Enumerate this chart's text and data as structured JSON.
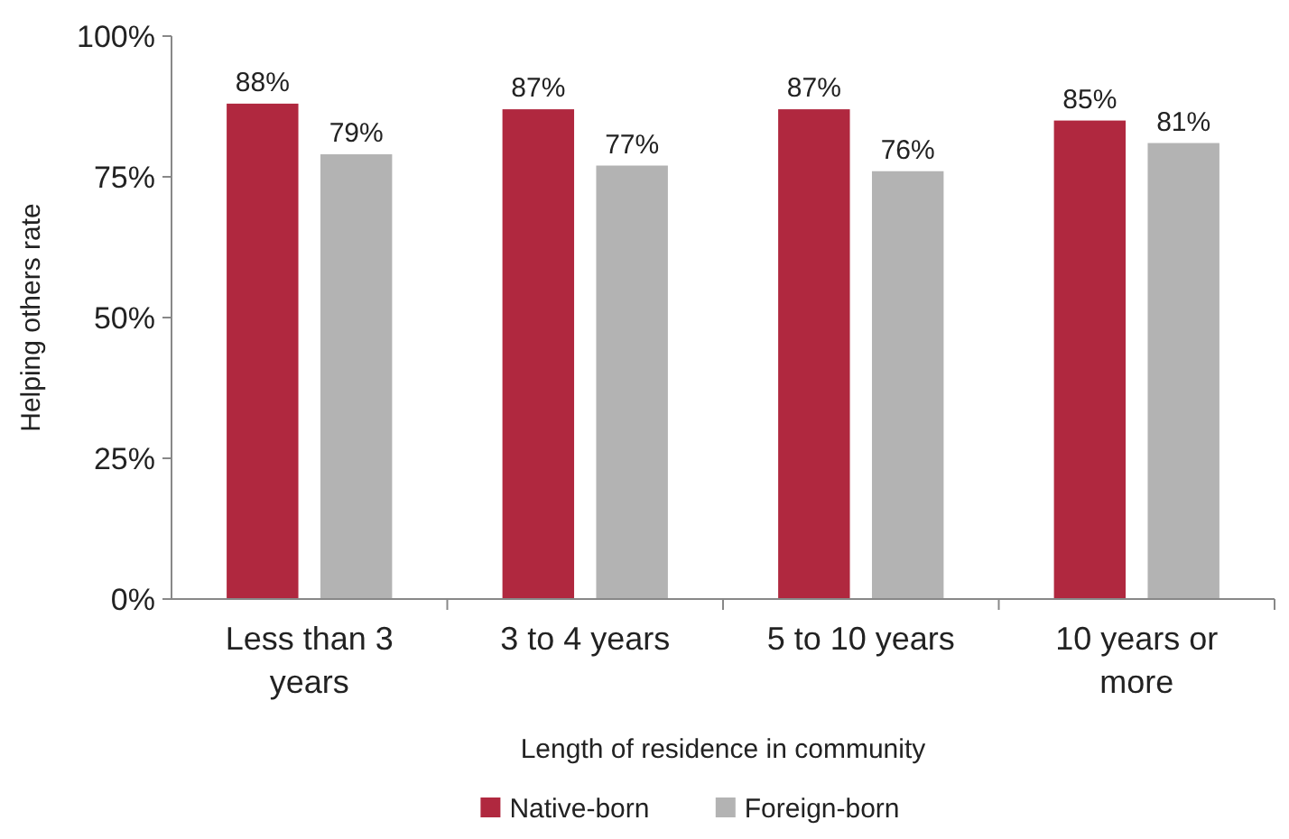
{
  "chart_data": {
    "type": "bar",
    "xlabel": "Length of residence in community",
    "ylabel": "Helping others rate",
    "categories": [
      "Less than 3 years",
      "3 to 4 years",
      "5 to 10 years",
      "10 years or more"
    ],
    "series": [
      {
        "name": "Native-born",
        "color": "#b0283f",
        "values": [
          88,
          87,
          87,
          85
        ],
        "value_labels": [
          "88%",
          "87%",
          "87%",
          "85%"
        ]
      },
      {
        "name": "Foreign-born",
        "color": "#b3b3b3",
        "values": [
          79,
          77,
          76,
          81
        ],
        "value_labels": [
          "79%",
          "77%",
          "76%",
          "81%"
        ]
      }
    ],
    "ylim": [
      0,
      100
    ],
    "yticks": [
      {
        "value": 0,
        "label": "0%"
      },
      {
        "value": 25,
        "label": "25%"
      },
      {
        "value": 50,
        "label": "50%"
      },
      {
        "value": 75,
        "label": "75%"
      },
      {
        "value": 100,
        "label": "100%"
      }
    ],
    "grid": false,
    "legend": "bottom"
  }
}
